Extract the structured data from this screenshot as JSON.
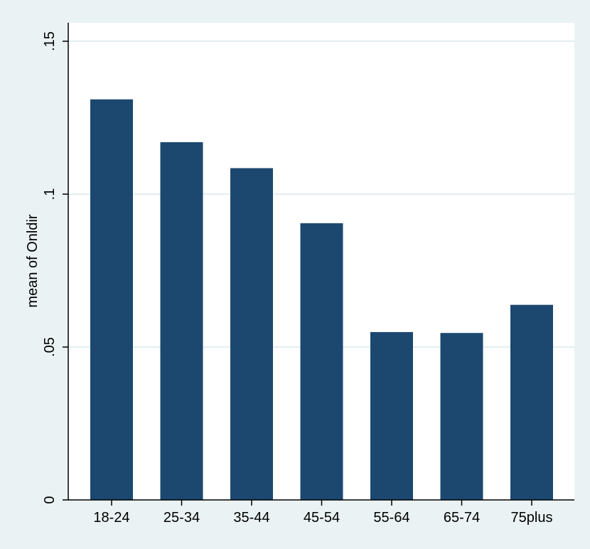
{
  "chart_data": {
    "type": "bar",
    "title": "",
    "xlabel": "",
    "ylabel": "mean of Onldir",
    "categories": [
      "18-24",
      "25-34",
      "35-44",
      "45-54",
      "55-64",
      "65-74",
      "75plus"
    ],
    "values": [
      0.131,
      0.117,
      0.1085,
      0.0905,
      0.0549,
      0.0546,
      0.0638
    ],
    "ylim": [
      0,
      0.15
    ],
    "yticks": [
      0,
      0.05,
      0.1,
      0.15
    ],
    "ytick_labels": [
      "0",
      ".05",
      ".1",
      ".15"
    ],
    "grid": true,
    "colors": {
      "bar": "#1c4870",
      "background": "#eaf2f3",
      "plot_area": "#ffffff",
      "grid": "#e4eef0",
      "axis": "#000000"
    }
  }
}
